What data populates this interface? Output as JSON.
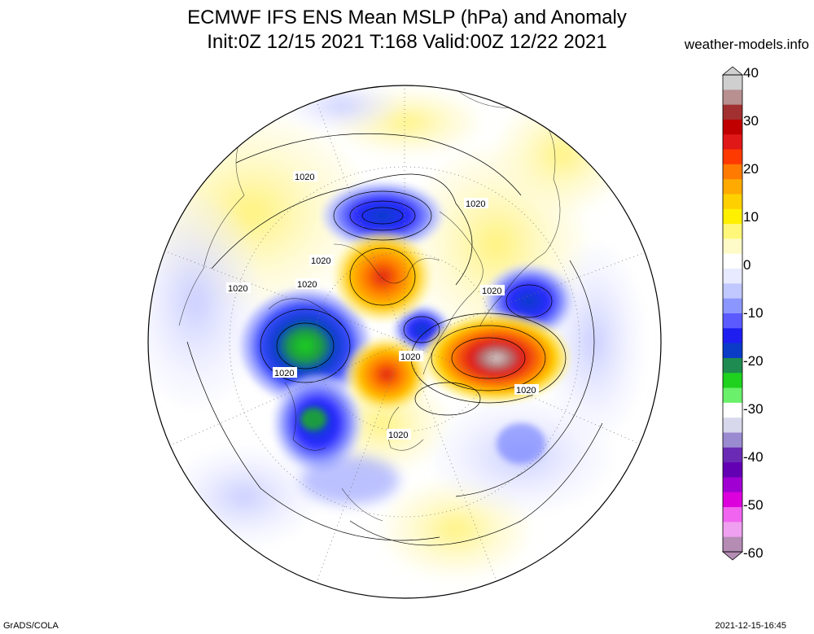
{
  "title": {
    "line1": "ECMWF IFS ENS Mean MSLP (hPa) and Anomaly",
    "line2": "Init:0Z 12/15 2021  T:168 Valid:00Z 12/22 2021"
  },
  "source_site": "weather-models.info",
  "footer": {
    "left": "GrADS/COLA",
    "right": "2021-12-15-16:45"
  },
  "map": {
    "projection": "north-polar-stereographic",
    "contour_labels": [
      {
        "text": "1020",
        "region": "western Siberia"
      },
      {
        "text": "1020",
        "region": "Greenland north"
      },
      {
        "text": "1020",
        "region": "central Siberia"
      },
      {
        "text": "1020",
        "region": "Siberia west"
      },
      {
        "text": "1020",
        "region": "Scandinavia west"
      },
      {
        "text": "1020",
        "region": "western Europe"
      },
      {
        "text": "1020",
        "region": "Asia south"
      },
      {
        "text": "1020",
        "region": "North Pacific"
      },
      {
        "text": "1020",
        "region": "North America west"
      },
      {
        "text": "1020",
        "region": "North America south"
      }
    ]
  },
  "colorbar": {
    "ticks": [
      "40",
      "30",
      "20",
      "10",
      "0",
      "-10",
      "-20",
      "-30",
      "-40",
      "-50",
      "-60"
    ],
    "colors_top_to_bottom": [
      "#cfcfcf",
      "#b89090",
      "#a23030",
      "#c00000",
      "#e01818",
      "#ff3a00",
      "#ff7a00",
      "#ffaa00",
      "#ffd000",
      "#fff000",
      "#fff77a",
      "#fffbc8",
      "#ffffff",
      "#e8eaff",
      "#c0c8ff",
      "#8c96ff",
      "#5a5aff",
      "#1e1ef0",
      "#0a3cc8",
      "#1e8c50",
      "#1ed21e",
      "#6af06a",
      "#ffffff",
      "#d8d8ec",
      "#9a8ad0",
      "#6a2ab4",
      "#6400b4",
      "#a000d2",
      "#dc00dc",
      "#f064f0",
      "#f0a0f0",
      "#b48cb4"
    ]
  }
}
